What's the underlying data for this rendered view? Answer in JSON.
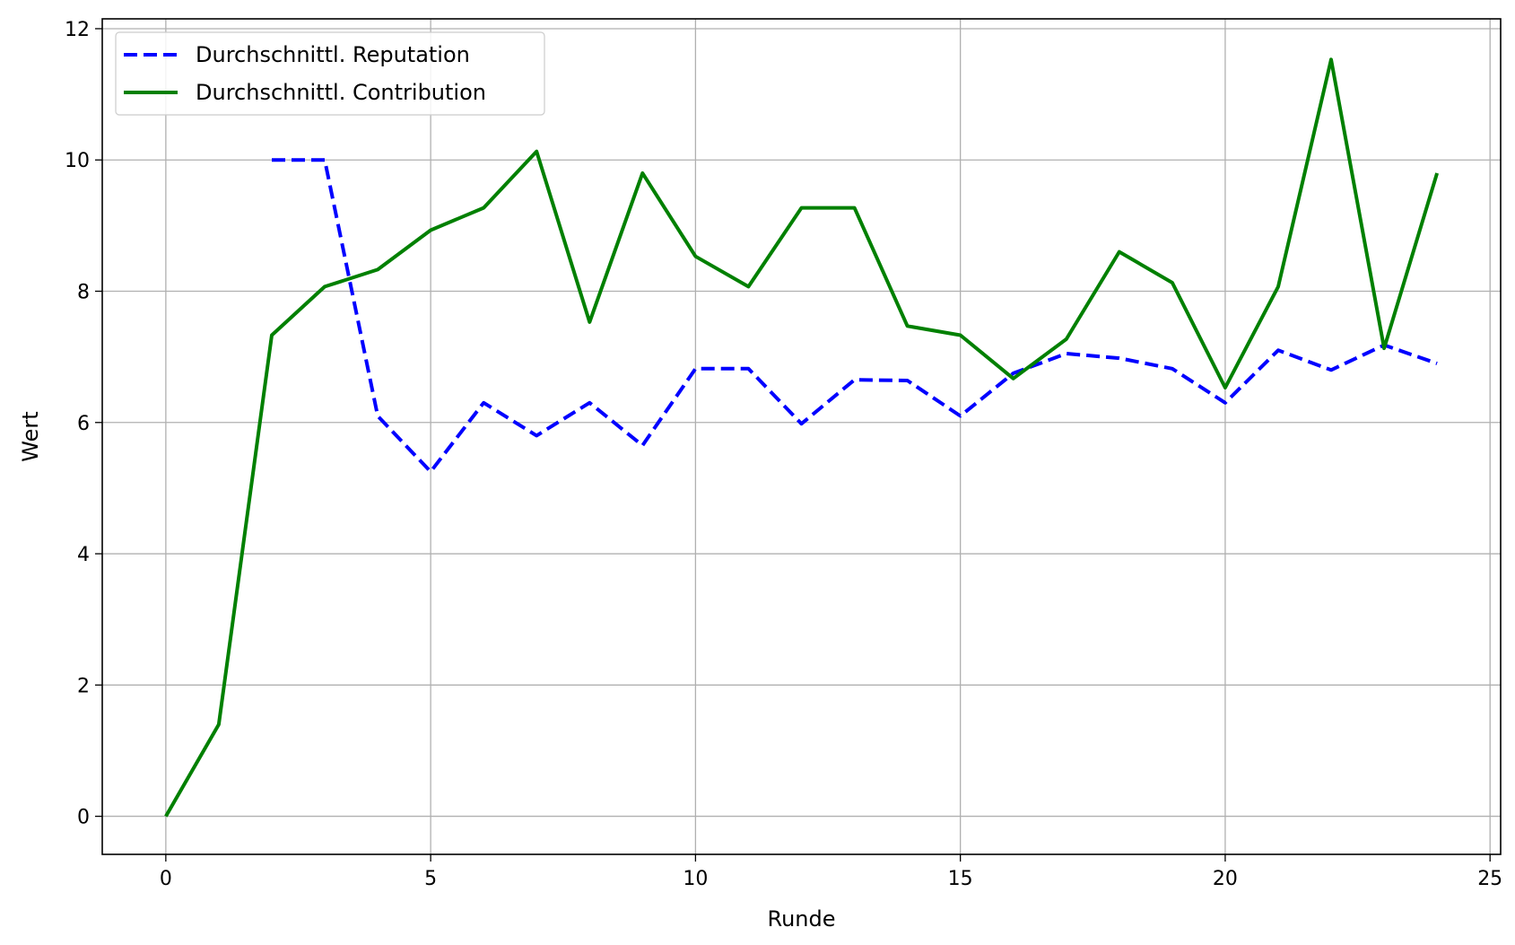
{
  "chart_data": {
    "type": "line",
    "xlabel": "Runde",
    "ylabel": "Wert",
    "xlim": [
      -1.2,
      25.2
    ],
    "ylim": [
      -0.58,
      12.15
    ],
    "xticks": [
      0,
      5,
      10,
      15,
      20,
      25
    ],
    "yticks": [
      0,
      2,
      4,
      6,
      8,
      10,
      12
    ],
    "grid": true,
    "legend_position": "top-left",
    "series": [
      {
        "name": "Durchschnittl. Reputation",
        "color": "#0000ff",
        "style": "dashed",
        "x": [
          2,
          3,
          4,
          5,
          6,
          7,
          8,
          9,
          10,
          11,
          12,
          13,
          14,
          15,
          16,
          17,
          18,
          19,
          20,
          21,
          22,
          23,
          24
        ],
        "values": [
          10.0,
          10.0,
          6.1,
          5.25,
          6.3,
          5.8,
          6.3,
          5.65,
          6.82,
          6.82,
          5.98,
          6.65,
          6.64,
          6.1,
          6.75,
          7.05,
          6.98,
          6.82,
          6.3,
          7.1,
          6.8,
          7.18,
          6.9
        ]
      },
      {
        "name": "Durchschnittl. Contribution",
        "color": "#008000",
        "style": "solid",
        "x": [
          0,
          1,
          2,
          3,
          4,
          5,
          6,
          7,
          8,
          9,
          10,
          11,
          12,
          13,
          14,
          15,
          16,
          17,
          18,
          19,
          20,
          21,
          22,
          23,
          24
        ],
        "values": [
          0.0,
          1.4,
          7.33,
          8.07,
          8.33,
          8.93,
          9.27,
          10.13,
          7.53,
          9.8,
          8.53,
          8.07,
          9.27,
          9.27,
          7.47,
          7.33,
          6.67,
          7.27,
          8.6,
          8.13,
          6.53,
          8.07,
          11.53,
          7.13,
          9.8
        ]
      }
    ]
  }
}
